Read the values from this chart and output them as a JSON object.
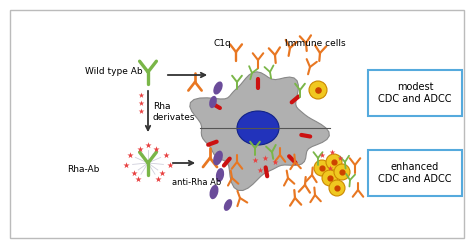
{
  "bg_color": "#ffffff",
  "border_color": "#bbbbbb",
  "antibody_green": "#7ab648",
  "antibody_orange": "#e87722",
  "antibody_purple": "#6b4c9a",
  "star_color": "#e84040",
  "cell_body": "#b0b0b0",
  "cell_nucleus": "#2233bb",
  "arrow_color": "#333333",
  "label_wt": "Wild type Ab",
  "label_rha": "Rha-Ab",
  "label_rha_deriv": "Rha\nderivates",
  "label_anti_rha": "anti-Rha Ab",
  "label_c1q": "C1q",
  "label_immune": "Immune cells",
  "label_modest": "modest\nCDC and ADCC",
  "label_enhanced": "enhanced\nCDC and ADCC",
  "modest_box_edge": "#55aadd",
  "highlight_yellow": "#f0c820",
  "separator_line_color": "#555555",
  "font_size_label": 6.5,
  "font_size_box": 7.0
}
